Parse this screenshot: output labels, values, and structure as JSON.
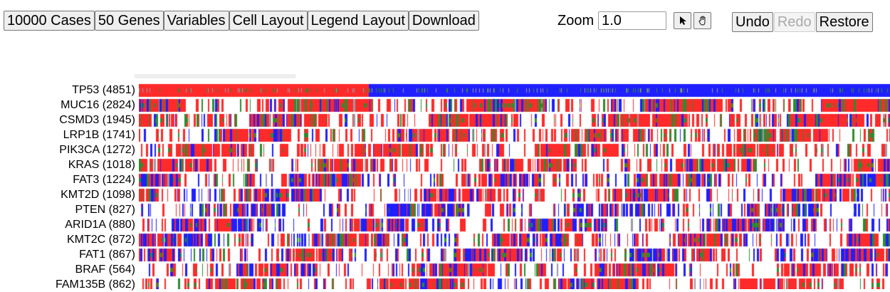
{
  "toolbar": {
    "cases_label": "10000 Cases",
    "genes_label": "50 Genes",
    "variables_label": "Variables",
    "cell_layout_label": "Cell Layout",
    "legend_layout_label": "Legend Layout",
    "download_label": "Download"
  },
  "zoom": {
    "label": "Zoom",
    "value": "1.0"
  },
  "mode_buttons": {
    "select_icon": "pointer-arrow-icon",
    "pan_icon": "hand-pan-icon"
  },
  "history": {
    "undo_label": "Undo",
    "redo_label": "Redo",
    "restore_label": "Restore"
  },
  "colors": {
    "missense": "#ff2a2a",
    "truncating": "#1f1fff",
    "inframe": "#2e8b2e",
    "silent": "#9a9aa8"
  },
  "genes": [
    {
      "label": "TP53 (4851)"
    },
    {
      "label": "MUC16 (2824)"
    },
    {
      "label": "CSMD3 (1945)"
    },
    {
      "label": "LRP1B (1741)"
    },
    {
      "label": "PIK3CA (1272)"
    },
    {
      "label": "KRAS (1018)"
    },
    {
      "label": "FAT3 (1224)"
    },
    {
      "label": "KMT2D (1098)"
    },
    {
      "label": "PTEN (827)"
    },
    {
      "label": "ARID1A (880)"
    },
    {
      "label": "KMT2C (872)"
    },
    {
      "label": "FAT1 (867)"
    },
    {
      "label": "BRAF (564)"
    },
    {
      "label": "FAM135B (862)"
    }
  ]
}
